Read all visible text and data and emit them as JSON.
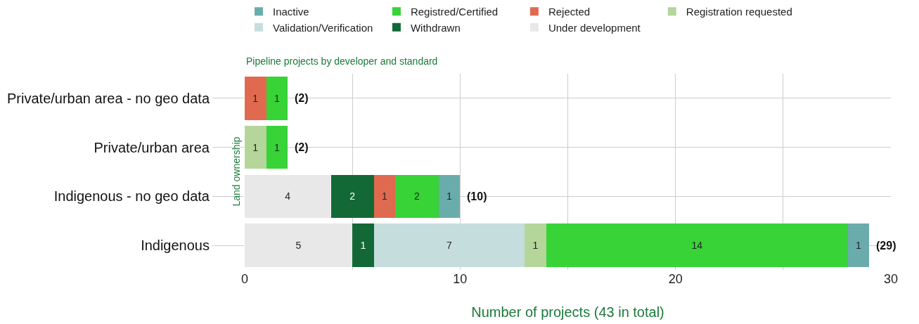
{
  "chart_data": {
    "type": "bar",
    "orientation": "horizontal",
    "stacked": true,
    "title": "Pipeline projects by developer and standard",
    "xlabel": "Number of projects (43 in total)",
    "ylabel": "Land ownership",
    "categories": [
      "Private/urban area - no geo data",
      "Private/urban area",
      "Indigenous - no geo data",
      "Indigenous"
    ],
    "series": [
      {
        "name": "Under development",
        "color": "#e8e8e8",
        "values": [
          null,
          null,
          4,
          5
        ]
      },
      {
        "name": "Withdrawn",
        "color": "#136936",
        "values": [
          null,
          null,
          2,
          1
        ]
      },
      {
        "name": "Validation/Verification",
        "color": "#c5dedd",
        "values": [
          null,
          null,
          null,
          7
        ]
      },
      {
        "name": "Registration requested",
        "color": "#b5d69a",
        "values": [
          null,
          1,
          null,
          1
        ]
      },
      {
        "name": "Rejected",
        "color": "#e06a50",
        "values": [
          1,
          null,
          1,
          null
        ]
      },
      {
        "name": "Registred/Certified",
        "color": "#37d337",
        "values": [
          1,
          1,
          2,
          14
        ]
      },
      {
        "name": "Inactive",
        "color": "#6aacac",
        "values": [
          null,
          null,
          1,
          1
        ]
      }
    ],
    "totals": [
      "(2)",
      "(2)",
      "(10)",
      "(29)"
    ],
    "data_labels": true,
    "legend": "top",
    "grid": true,
    "xlim": [
      0,
      30
    ],
    "xticks": [
      0,
      {
        "value": 5,
        "label": null
      },
      10,
      {
        "value": 15,
        "label": null
      },
      20,
      {
        "value": 25,
        "label": null
      },
      30
    ]
  }
}
